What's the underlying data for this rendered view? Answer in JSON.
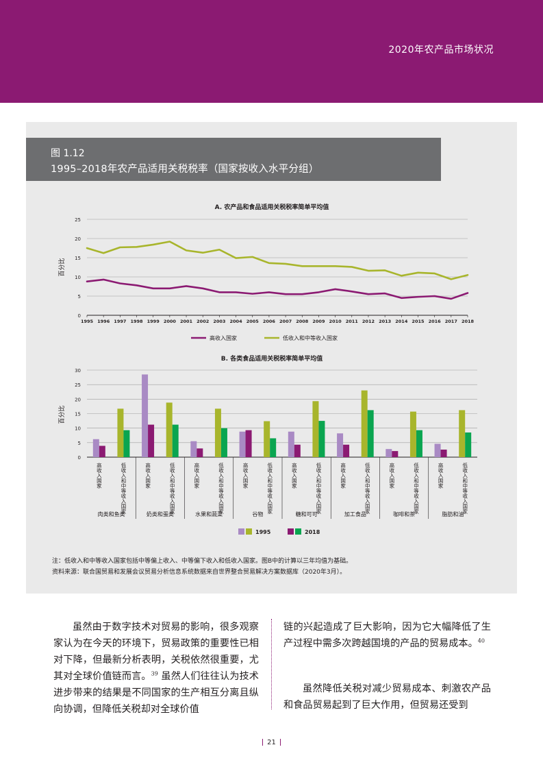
{
  "header": {
    "title": "2020年农产品市场状况"
  },
  "figure": {
    "number": "图 1.12",
    "caption": "1995–2018年农产品适用关税税率（国家按收入水平分组）",
    "note": "注：低收入和中等收入国家包括中等偏上收入、中等偏下收入和低收入国家。图B中的计算以三年均值为基础。",
    "source": "资料来源：联合国贸易和发展会议贸易分析信息系统数据来自世界整合贸易解决方案数据库（2020年3月）。"
  },
  "colors": {
    "high_income": "#8b1a72",
    "low_middle_income": "#a8b52c",
    "high_1995": "#a98ac4",
    "high_2018": "#8b1a72",
    "low_1995": "#a8b52c",
    "low_2018": "#0aa550"
  },
  "chart_data": [
    {
      "type": "line",
      "title": "A. 农产品和食品适用关税税率简单平均值",
      "ylabel": "百分比",
      "xlabel": "",
      "ylim": [
        0,
        25
      ],
      "yticks": [
        0,
        5,
        10,
        15,
        20,
        25
      ],
      "x": [
        "1995",
        "1996",
        "1997",
        "1998",
        "1999",
        "2000",
        "2001",
        "2002",
        "2003",
        "2004",
        "2005",
        "2006",
        "2007",
        "2008",
        "2009",
        "2010",
        "2011",
        "2012",
        "2013",
        "2014",
        "2015",
        "2016",
        "2017",
        "2018"
      ],
      "series": [
        {
          "name": "高收入国家",
          "color_key": "high_income",
          "values": [
            8.8,
            9.3,
            8.3,
            7.8,
            7.0,
            7.0,
            7.6,
            7.0,
            6.0,
            6.0,
            5.6,
            6.0,
            5.5,
            5.5,
            6.0,
            6.8,
            6.2,
            5.5,
            5.7,
            4.5,
            4.8,
            5.0,
            4.3,
            5.8
          ]
        },
        {
          "name": "低收入和中等收入国家",
          "color_key": "low_middle_income",
          "values": [
            17.5,
            16.2,
            17.7,
            17.8,
            18.4,
            19.2,
            16.9,
            16.3,
            17.1,
            14.9,
            15.2,
            13.6,
            13.4,
            12.8,
            12.8,
            12.8,
            12.6,
            11.6,
            11.7,
            10.3,
            11.1,
            10.9,
            9.4,
            10.5
          ]
        }
      ],
      "legend": "bottom"
    },
    {
      "type": "bar",
      "title": "B. 各类食品适用关税税率简单平均值",
      "ylabel": "百分比",
      "ylim": [
        0,
        30
      ],
      "yticks": [
        0,
        5,
        10,
        15,
        20,
        25,
        30
      ],
      "categories": [
        "肉类和鱼类",
        "奶类和蛋类",
        "水果和蔬菜",
        "谷物",
        "糖和可可",
        "加工食品",
        "咖啡和茶",
        "脂肪和油"
      ],
      "groups": [
        "高收入国家",
        "低收入和中等收入国家"
      ],
      "series": [
        {
          "name": "高收入国家 1995",
          "color_key": "high_1995",
          "values": [
            6.2,
            28.5,
            5.5,
            8.8,
            8.8,
            8.2,
            2.8,
            4.6
          ]
        },
        {
          "name": "高收入国家 2018",
          "color_key": "high_2018",
          "values": [
            3.9,
            11.2,
            3.0,
            9.3,
            4.3,
            4.3,
            2.1,
            2.6
          ]
        },
        {
          "name": "低收入和中等收入国家 1995",
          "color_key": "low_1995",
          "values": [
            16.7,
            18.8,
            16.7,
            12.4,
            19.3,
            23.0,
            15.7,
            16.2
          ]
        },
        {
          "name": "低收入和中等收入国家 2018",
          "color_key": "low_2018",
          "values": [
            9.3,
            11.2,
            10.0,
            6.5,
            12.5,
            16.2,
            9.3,
            8.5
          ]
        }
      ],
      "legend_labels": [
        "1995",
        "2018"
      ],
      "legend": "bottom"
    }
  ],
  "body": {
    "left_paragraph": "虽然由于数字技术对贸易的影响，很多观察家认为在今天的环境下，贸易政策的重要性已相对下降，但最新分析表明，关税依然很重要，尤其对全球价值链而言。",
    "left_ref1": "39",
    "left_paragraph_2": " 虽然人们往往认为技术进步带来的结果是不同国家的生产相互分离且纵向协调，但降低关税却对全球价值",
    "right_paragraph_1": "链的兴起造成了巨大影响，因为它大幅降低了生产过程中需多次跨越国境的产品的贸易成本。",
    "right_ref1": "40",
    "right_paragraph_2": "虽然降低关税对减少贸易成本、刺激农产品和食品贸易起到了巨大作用，但贸易还受到"
  },
  "page_number": "21"
}
